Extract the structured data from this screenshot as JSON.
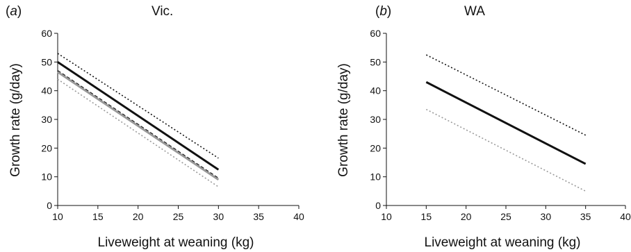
{
  "chart_data": [
    {
      "type": "line",
      "panel_label": "a",
      "title": "Vic.",
      "xlabel": "Liveweight at weaning (kg)",
      "ylabel": "Growth rate (g/day)",
      "xlim": [
        10,
        40
      ],
      "ylim": [
        0,
        60
      ],
      "x_ticks": [
        "10",
        "15",
        "20",
        "25",
        "30",
        "35",
        "40"
      ],
      "y_ticks": [
        "0",
        "10",
        "20",
        "30",
        "40",
        "50",
        "60"
      ],
      "grid": false,
      "series": [
        {
          "x": [
            10,
            30
          ],
          "y": [
            53,
            16.5
          ],
          "color": "#111111",
          "style": "dotted"
        },
        {
          "x": [
            10,
            30
          ],
          "y": [
            50,
            12.5
          ],
          "color": "#111111",
          "style": "solid"
        },
        {
          "x": [
            10,
            30
          ],
          "y": [
            47,
            9.5
          ],
          "color": "#111111",
          "style": "dashed"
        },
        {
          "x": [
            10,
            30
          ],
          "y": [
            46.5,
            9
          ],
          "color": "#999999",
          "style": "solid"
        },
        {
          "x": [
            10,
            30
          ],
          "y": [
            44,
            6.5
          ],
          "color": "#999999",
          "style": "dotted"
        }
      ]
    },
    {
      "type": "line",
      "panel_label": "b",
      "title": "WA",
      "xlabel": "Liveweight at weaning (kg)",
      "ylabel": "Growth rate (g/day)",
      "xlim": [
        10,
        40
      ],
      "ylim": [
        0,
        60
      ],
      "x_ticks": [
        "10",
        "15",
        "20",
        "25",
        "30",
        "35",
        "40"
      ],
      "y_ticks": [
        "0",
        "10",
        "20",
        "30",
        "40",
        "50",
        "60"
      ],
      "grid": false,
      "series": [
        {
          "x": [
            15,
            35
          ],
          "y": [
            52.5,
            24.5
          ],
          "color": "#111111",
          "style": "dotted"
        },
        {
          "x": [
            15,
            35
          ],
          "y": [
            43,
            14.5
          ],
          "color": "#111111",
          "style": "solid"
        },
        {
          "x": [
            15,
            35
          ],
          "y": [
            33.5,
            5
          ],
          "color": "#999999",
          "style": "dotted"
        }
      ]
    }
  ]
}
